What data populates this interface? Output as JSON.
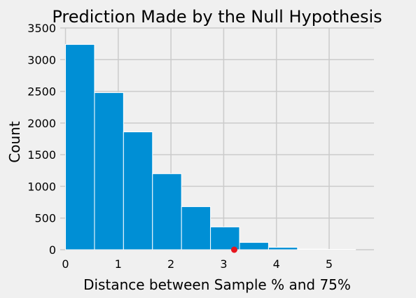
{
  "chart_data": {
    "type": "bar",
    "title": "Prediction Made by the Null Hypothesis",
    "xlabel": "Distance between Sample % and 75%",
    "ylabel": "Count",
    "xlim": [
      -0.1,
      5.85
    ],
    "ylim": [
      0,
      3500
    ],
    "x_ticks": [
      0,
      1,
      2,
      3,
      4,
      5
    ],
    "y_ticks": [
      0,
      500,
      1000,
      1500,
      2000,
      2500,
      3000,
      3500
    ],
    "grid": true,
    "bins": [
      {
        "x0": 0.0,
        "x1": 0.55,
        "count": 3240
      },
      {
        "x0": 0.55,
        "x1": 1.1,
        "count": 2480
      },
      {
        "x0": 1.1,
        "x1": 1.65,
        "count": 1860
      },
      {
        "x0": 1.65,
        "x1": 2.2,
        "count": 1200
      },
      {
        "x0": 2.2,
        "x1": 2.75,
        "count": 680
      },
      {
        "x0": 2.75,
        "x1": 3.3,
        "count": 360
      },
      {
        "x0": 3.3,
        "x1": 3.85,
        "count": 115
      },
      {
        "x0": 3.85,
        "x1": 4.4,
        "count": 38
      },
      {
        "x0": 4.4,
        "x1": 4.95,
        "count": 10
      },
      {
        "x0": 4.95,
        "x1": 5.5,
        "count": 6
      }
    ],
    "observed_point": {
      "x": 3.2,
      "y": 0
    },
    "colors": {
      "bar": "#008fd5",
      "bar_edge": "#ffffff",
      "point": "#e6161f",
      "grid": "#cbcbcb",
      "background": "#f0f0f0"
    }
  }
}
